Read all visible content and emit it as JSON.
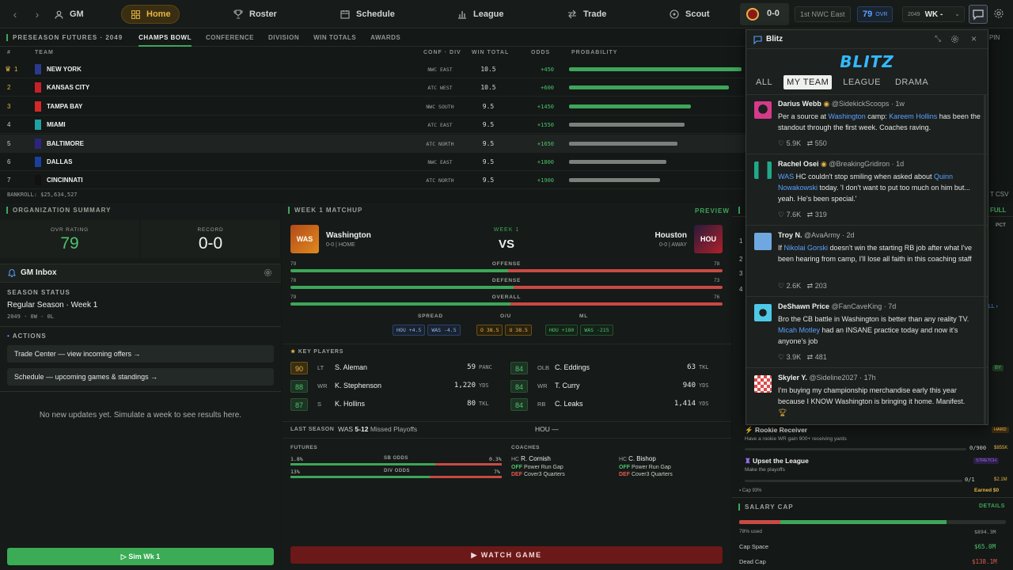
{
  "nav": {
    "back": "‹",
    "forward": "›",
    "gm": "GM",
    "home": "Home",
    "roster": "Roster",
    "schedule": "Schedule",
    "league": "League",
    "trade": "Trade",
    "scout": "Scout",
    "record": "0-0",
    "division_rank": "1st NWC East",
    "ovr": "79",
    "ovr_label": "OVR",
    "year": "2049",
    "week": "WK -"
  },
  "futures": {
    "title": "PRESEASON FUTURES · 2049",
    "tabs": [
      "CHAMPS BOWL",
      "CONFERENCE",
      "DIVISION",
      "WIN TOTALS",
      "AWARDS"
    ],
    "pin": "PIN",
    "columns": [
      "#",
      "TEAM",
      "CONF · DIV",
      "WIN TOTAL",
      "ODDS",
      "PROBABILITY"
    ],
    "rows": [
      {
        "rank": "1",
        "team": "NEW YORK",
        "conf": "NWC EAST",
        "wins": "10.5",
        "odds": "+450",
        "prob": 0.78,
        "color": "#2a3a8c",
        "bar": "#3ea65a"
      },
      {
        "rank": "2",
        "team": "KANSAS CITY",
        "conf": "ATC WEST",
        "wins": "10.5",
        "odds": "+600",
        "prob": 0.72,
        "color": "#c8202a",
        "bar": "#3ea65a"
      },
      {
        "rank": "3",
        "team": "TAMPA BAY",
        "conf": "NWC SOUTH",
        "wins": "9.5",
        "odds": "+1450",
        "prob": 0.55,
        "color": "#d62828",
        "bar": "#3ea65a"
      },
      {
        "rank": "4",
        "team": "MIAMI",
        "conf": "ATC EAST",
        "wins": "9.5",
        "odds": "+1550",
        "prob": 0.52,
        "color": "#20a0a0",
        "bar": "#7b807d"
      },
      {
        "rank": "5",
        "team": "BALTIMORE",
        "conf": "ATC NORTH",
        "wins": "9.5",
        "odds": "+1650",
        "prob": 0.49,
        "color": "#2c2580",
        "bar": "#7b807d"
      },
      {
        "rank": "6",
        "team": "DALLAS",
        "conf": "NWC EAST",
        "wins": "9.5",
        "odds": "+1800",
        "prob": 0.44,
        "color": "#1a3fa0",
        "bar": "#7b807d"
      },
      {
        "rank": "7",
        "team": "CINCINNATI",
        "conf": "ATC NORTH",
        "wins": "9.5",
        "odds": "+1900",
        "prob": 0.41,
        "color": "#111111",
        "bar": "#7b807d"
      }
    ],
    "bankroll": "BANKROLL: $25,634,527"
  },
  "org": {
    "title": "ORGANIZATION SUMMARY",
    "ovr_label": "OVR RATING",
    "ovr_value": "79",
    "record_label": "RECORD",
    "record_value": "0-0",
    "inbox_title": "GM Inbox",
    "season_label": "SEASON STATUS",
    "season_value": "Regular Season · Week 1",
    "season_sub": "2049 · 0W - 0L",
    "actions_label": "ACTIONS",
    "actions": [
      "Trade Center — view incoming offers →",
      "Schedule — upcoming games & standings →"
    ],
    "empty": "No new updates yet. Simulate a week to see results here.",
    "sim_button": "Sim Wk 1"
  },
  "matchup": {
    "title": "WEEK 1 MATCHUP",
    "preview": "PREVIEW",
    "week": "WEEK 1",
    "vs": "VS",
    "home": {
      "abbr": "WAS",
      "name": "Washington",
      "sub": "0-0 | HOME"
    },
    "away": {
      "abbr": "HOU",
      "name": "Houston",
      "sub": "0-0 | AWAY"
    },
    "compare": [
      {
        "label": "OFFENSE",
        "left": "79",
        "right": "78",
        "lv": 79,
        "rv": 78
      },
      {
        "label": "DEFENSE",
        "left": "78",
        "right": "73",
        "lv": 78,
        "rv": 73
      },
      {
        "label": "OVERALL",
        "left": "79",
        "right": "76",
        "lv": 79,
        "rv": 76
      }
    ],
    "spread_label": "SPREAD",
    "ou_label": "O/U",
    "ml_label": "ML",
    "spread": [
      "HOU +4.5",
      "WAS -4.5"
    ],
    "ou": [
      "O 38.5",
      "U 38.5"
    ],
    "ml": [
      "HOU +180",
      "WAS -215"
    ],
    "key_players_label": "KEY PLAYERS",
    "players_left": [
      {
        "ovr": "90",
        "pos": "LT",
        "name": "S. Aleman",
        "stat": "59",
        "unit": "PANC"
      },
      {
        "ovr": "88",
        "pos": "WR",
        "name": "K. Stephenson",
        "stat": "1,220",
        "unit": "YDS"
      },
      {
        "ovr": "87",
        "pos": "S",
        "name": "K. Hollins",
        "stat": "80",
        "unit": "TKL"
      }
    ],
    "players_right": [
      {
        "ovr": "84",
        "pos": "OLB",
        "name": "C. Eddings",
        "stat": "63",
        "unit": "TKL"
      },
      {
        "ovr": "84",
        "pos": "WR",
        "name": "T. Curry",
        "stat": "940",
        "unit": "YDS"
      },
      {
        "ovr": "84",
        "pos": "RB",
        "name": "C. Leaks",
        "stat": "1,414",
        "unit": "YDS"
      }
    ],
    "last_season_label": "LAST SEASON",
    "ls_team": "WAS",
    "ls_record": "5-12",
    "ls_result": "Missed Playoffs",
    "ls_away": "HOU —",
    "futures_label": "FUTURES",
    "sb_left": "1.8%",
    "sb_label": "SB ODDS",
    "sb_right": "0.3%",
    "div_left": "13%",
    "div_label": "DIV ODDS",
    "div_right": "7%",
    "coaches_label": "COACHES",
    "coach_left": {
      "hc": "HC",
      "name": "R. Cornish",
      "off": "OFF",
      "off_v": "Power Run Gap",
      "def": "DEF",
      "def_v": "Cover3 Quarters"
    },
    "coach_right": {
      "hc": "HC",
      "name": "C. Bishop",
      "off": "OFF",
      "off_v": "Power Run Gap",
      "def": "DEF",
      "def_v": "Cover3 Quarters"
    },
    "watch": "WATCH GAME"
  },
  "right": {
    "export": "T CSV",
    "full": "FULL",
    "pct": "PCT",
    "rows": [
      "1",
      "2",
      "3",
      "4"
    ],
    "all_link": "LL ›",
    "rookie_title": "Rookie Receiver",
    "rookie_tag": "HARD",
    "rookie_desc": "Have a rookie WR gain 900+ receiving yards",
    "rookie_prog": "0/900",
    "rookie_reward": "$855K",
    "upset_title": "Upset the League",
    "upset_tag": "STRETCH",
    "upset_desc": "Make the playoffs",
    "upset_prog": "0/1",
    "upset_reward": "$2.1M",
    "cap_note": "Cap 93%",
    "earned": "Earned $0",
    "salary_title": "SALARY CAP",
    "details": "DETAILS",
    "used": "78% used",
    "used_val": "$894.3M",
    "cap_space_label": "Cap Space",
    "cap_space": "$65.0M",
    "dead_cap_label": "Dead Cap",
    "dead_cap": "$138.1M",
    "by": "BY"
  },
  "blitz": {
    "title": "Blitz",
    "logo": "BLITZ",
    "tabs": [
      "ALL",
      "MY TEAM",
      "LEAGUE",
      "DRAMA"
    ],
    "posts": [
      {
        "name": "Darius Webb",
        "handle": "@SidekickScoops",
        "time": "· 1w",
        "likes": "5.9K",
        "reposts": "550"
      },
      {
        "name": "Rachel Osei",
        "handle": "@BreakingGridiron",
        "time": "· 1d",
        "likes": "7.6K",
        "reposts": "319"
      },
      {
        "name": "Troy N.",
        "handle": "@AvaArmy",
        "time": "· 2d",
        "likes": "2.6K",
        "reposts": "203"
      },
      {
        "name": "DeShawn Price",
        "handle": "@FanCaveKing",
        "time": "· 7d",
        "likes": "3.9K",
        "reposts": "481"
      },
      {
        "name": "Skyler Y.",
        "handle": "@Sideline2027",
        "time": "· 17h",
        "likes": "",
        "reposts": ""
      }
    ],
    "p1": {
      "a": "Per a source at ",
      "b": "Washington",
      "c": " camp: ",
      "d": "Kareem Hollins",
      "e": " has been the standout through the first week. Coaches raving."
    },
    "p2": {
      "a": "WAS",
      "b": " HC couldn't stop smiling when asked about ",
      "c": "Quinn Nowakowski",
      "d": " today. 'I don't want to put too much on him but... yeah. He's been special.'"
    },
    "p3": {
      "a": "If ",
      "b": "Nikolai Gorski",
      "c": " doesn't win the starting RB job after what I've been hearing from camp, I'll lose all faith in this coaching staff"
    },
    "p4": {
      "a": "Bro the CB battle in Washington is better than any reality TV. ",
      "b": "Micah Motley",
      "c": " had an INSANE practice today and now it's anyone's job"
    },
    "p5": {
      "a": "I'm buying my championship merchandise early this year because I KNOW Washington is bringing it home. Manifest."
    }
  },
  "colors": {
    "accent": "#3ea65a",
    "gold": "#e7b444",
    "red": "#e25a52",
    "link": "#5aa0ff"
  }
}
